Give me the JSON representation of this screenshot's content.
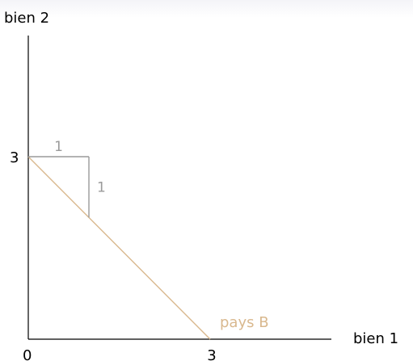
{
  "chart_data": {
    "type": "line",
    "ylabel": "bien 2",
    "xlabel": "bien 1",
    "origin_label": "0",
    "xlim": [
      0,
      3
    ],
    "ylim": [
      0,
      3
    ],
    "x_ticks": [
      {
        "value": 3,
        "label": "3"
      }
    ],
    "y_ticks": [
      {
        "value": 3,
        "label": "3"
      }
    ],
    "series": [
      {
        "name": "pays B",
        "color": "#d9b88e",
        "points": [
          {
            "x": 0,
            "y": 3
          },
          {
            "x": 3,
            "y": 0
          }
        ]
      }
    ],
    "slope_triangle": {
      "color": "#9a9a9a",
      "run": 1,
      "rise": 1,
      "run_label": "1",
      "rise_label": "1"
    }
  }
}
